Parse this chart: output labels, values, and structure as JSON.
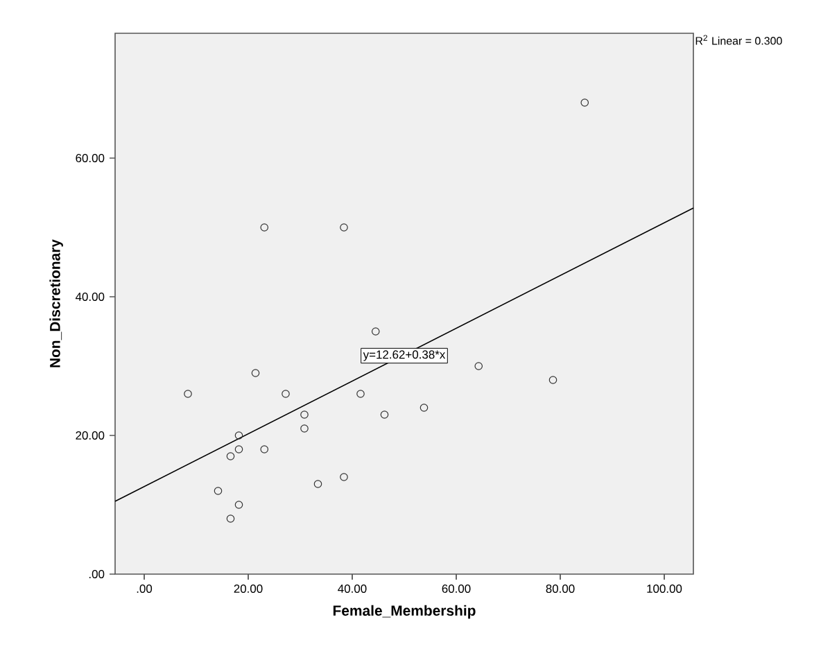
{
  "chart_data": {
    "type": "scatter",
    "xlabel": "Female_Membership",
    "ylabel": "Non_Discretionary",
    "xlim": [
      -5.6,
      105.6
    ],
    "ylim": [
      0,
      78
    ],
    "xticks": [
      {
        "value": 0,
        "label": ".00"
      },
      {
        "value": 20,
        "label": "20.00"
      },
      {
        "value": 40,
        "label": "40.00"
      },
      {
        "value": 60,
        "label": "60.00"
      },
      {
        "value": 80,
        "label": "80.00"
      },
      {
        "value": 100,
        "label": "100.00"
      }
    ],
    "yticks": [
      {
        "value": 0,
        "label": ".00"
      },
      {
        "value": 20,
        "label": "20.00"
      },
      {
        "value": 40,
        "label": "40.00"
      },
      {
        "value": 60,
        "label": "60.00"
      }
    ],
    "series": [
      {
        "marker": "circle",
        "color": "#333333",
        "x": [
          8.4,
          21.4,
          27.2,
          30.8,
          30.8,
          18.2,
          18.2,
          16.6,
          23.1,
          14.2,
          18.2,
          16.6,
          33.4,
          38.4,
          41.6,
          44.5,
          46.2,
          53.8,
          64.3,
          78.6,
          23.1,
          38.4,
          84.7
        ],
        "values": [
          26,
          29,
          26,
          23,
          21,
          20,
          18,
          17,
          18,
          12,
          10,
          8,
          13,
          14,
          26,
          35,
          23,
          24,
          30,
          28,
          50,
          50,
          68
        ]
      },
      {
        "type": "line",
        "marker": "none",
        "color": "#000000",
        "x": [
          -5.6,
          105.6
        ],
        "values": [
          10.5,
          52.8
        ]
      }
    ],
    "annotations": [
      "R$^{2}$ Linear = 0.300",
      {
        "text": "y=12.62+0.38*x",
        "x": 50,
        "y": 31.5
      }
    ]
  }
}
